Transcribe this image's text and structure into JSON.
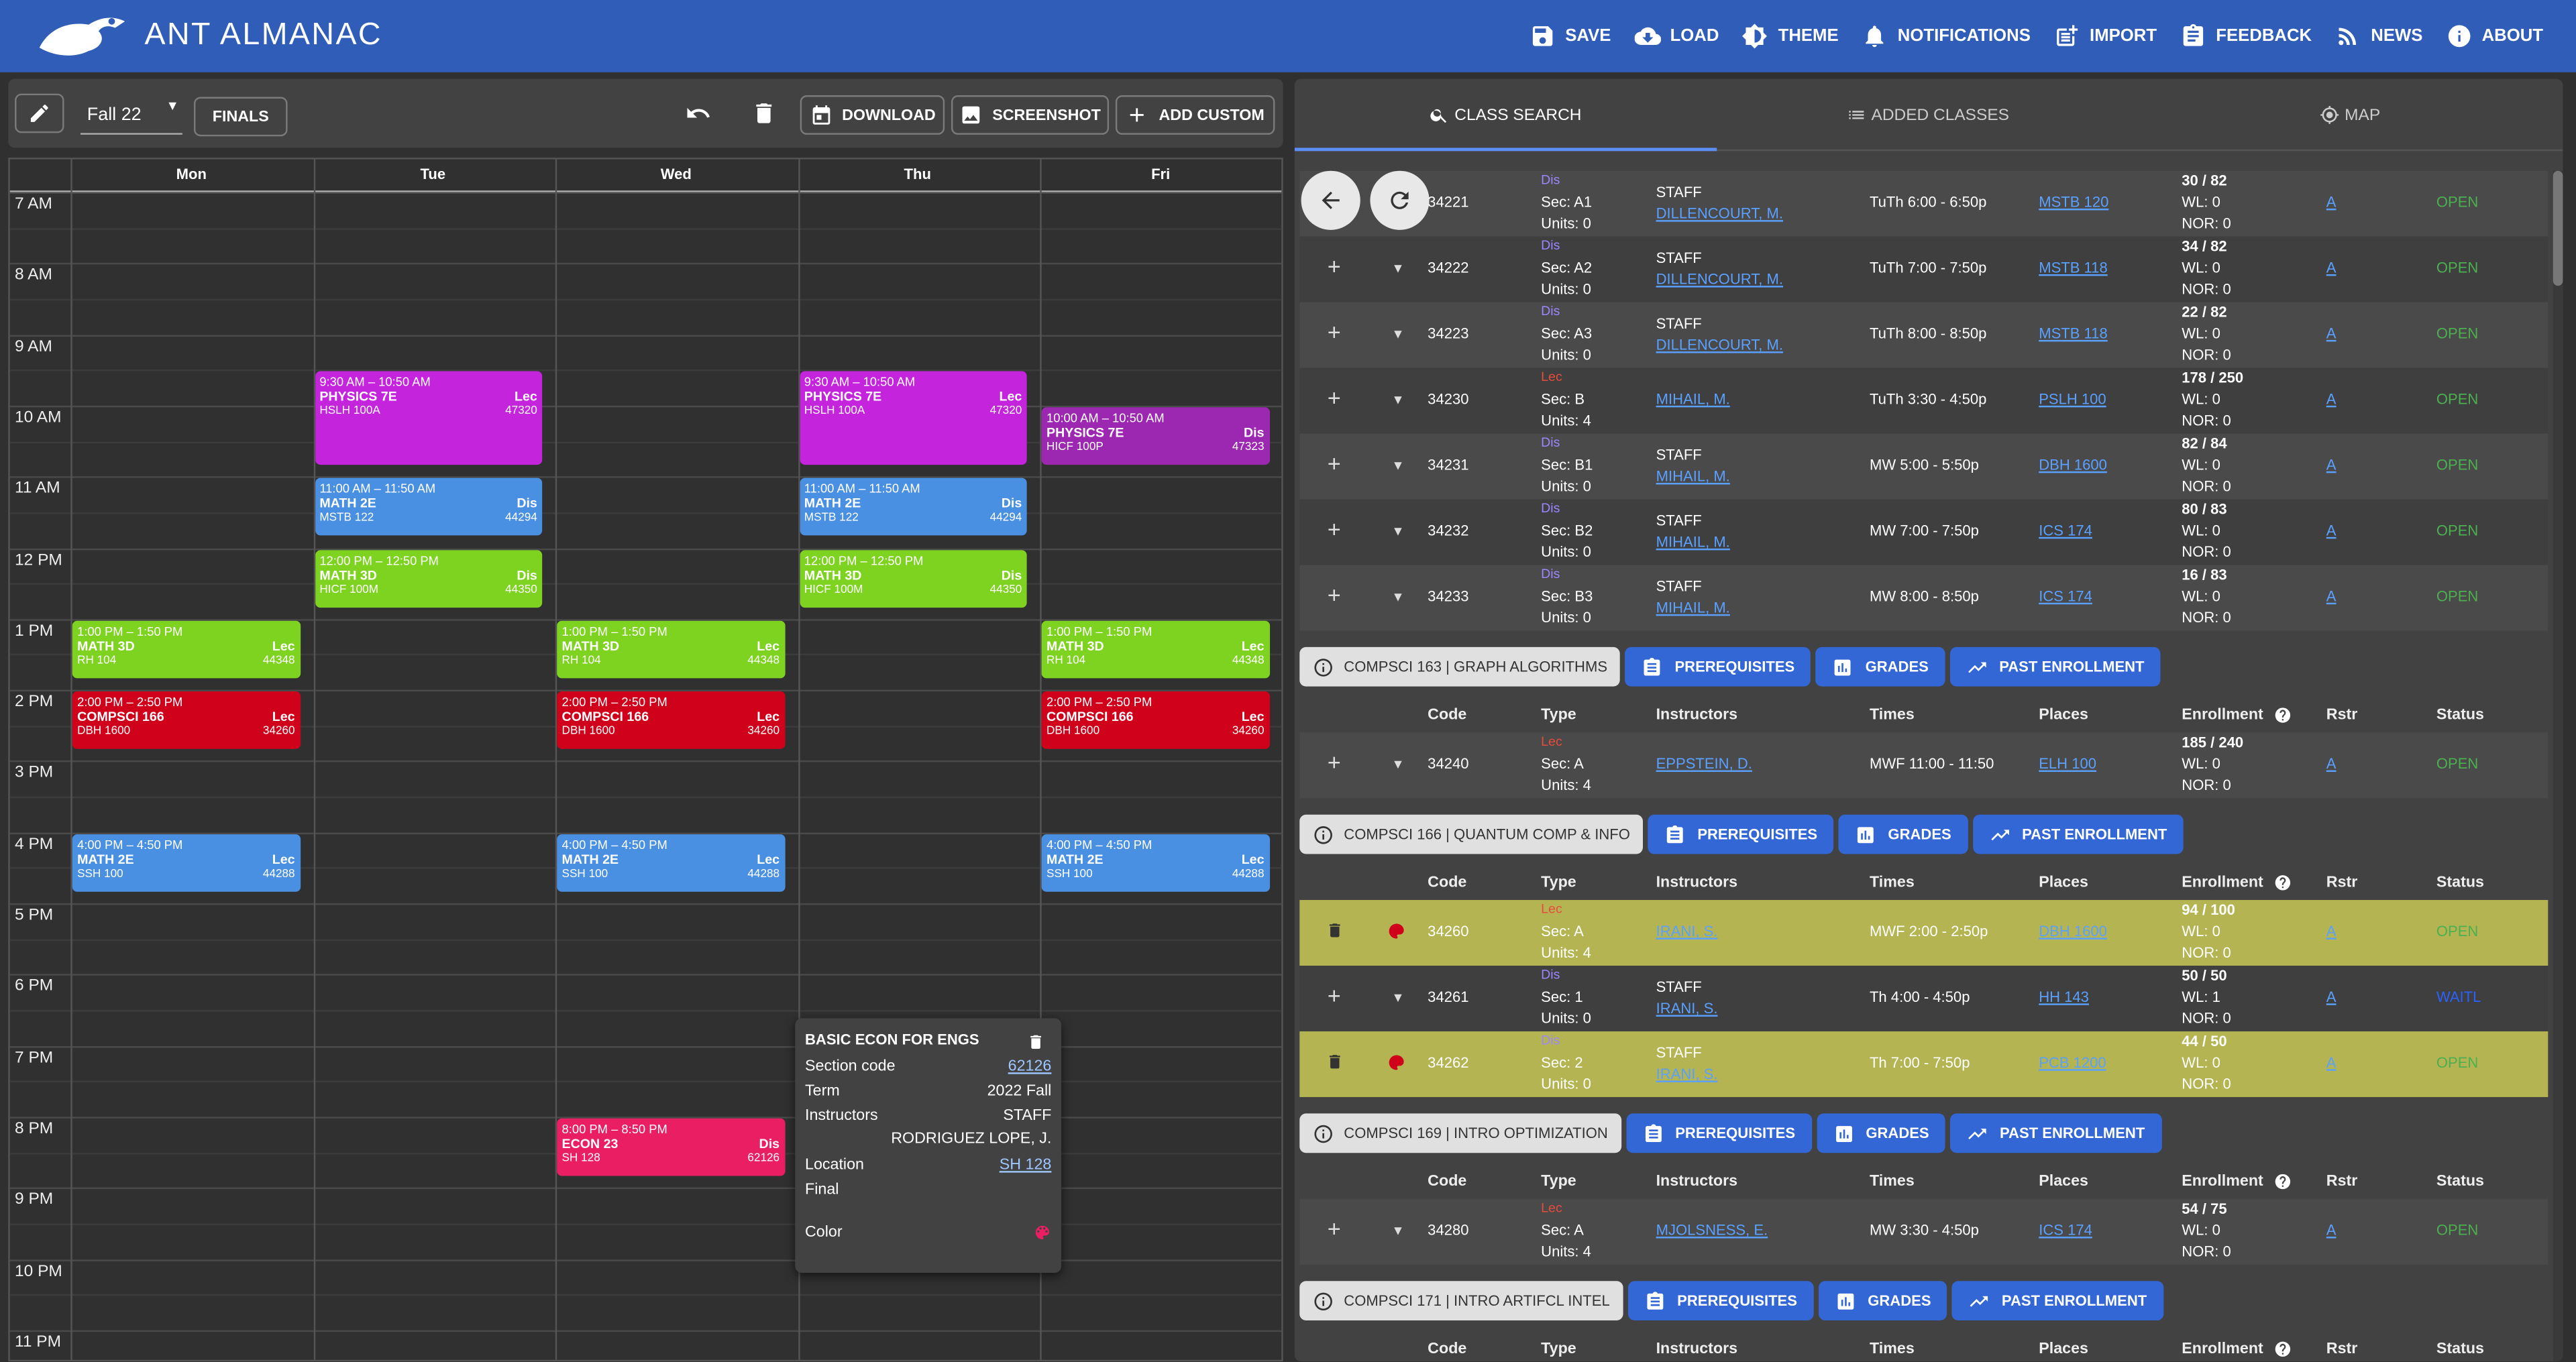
{
  "app": {
    "title": "ANT ALMANAC"
  },
  "nav": [
    {
      "label": "SAVE",
      "icon": "save-icon"
    },
    {
      "label": "LOAD",
      "icon": "cloud-download-icon"
    },
    {
      "label": "THEME",
      "icon": "brightness-icon"
    },
    {
      "label": "NOTIFICATIONS",
      "icon": "bell-icon"
    },
    {
      "label": "IMPORT",
      "icon": "post-add-icon"
    },
    {
      "label": "FEEDBACK",
      "icon": "assignment-icon"
    },
    {
      "label": "NEWS",
      "icon": "rss-icon"
    },
    {
      "label": "ABOUT",
      "icon": "info-icon"
    }
  ],
  "toolbar": {
    "term": "Fall 22",
    "finals": "FINALS",
    "download": "DOWNLOAD",
    "screenshot": "SCREENSHOT",
    "add_custom": "ADD CUSTOM"
  },
  "calendar": {
    "days": [
      "Mon",
      "Tue",
      "Wed",
      "Thu",
      "Fri"
    ],
    "hours": [
      "7 AM",
      "8 AM",
      "9 AM",
      "10 AM",
      "11 AM",
      "12 PM",
      "1 PM",
      "2 PM",
      "3 PM",
      "4 PM",
      "5 PM",
      "6 PM",
      "7 PM",
      "8 PM",
      "9 PM",
      "10 PM",
      "11 PM"
    ],
    "events": [
      {
        "day": 1,
        "start": 9.5,
        "end": 10.833,
        "time": "9:30 AM – 10:50 AM",
        "name": "PHYSICS 7E",
        "type": "Lec",
        "loc": "HSLH 100A",
        "code": "47320",
        "color": "#c424dc"
      },
      {
        "day": 3,
        "start": 9.5,
        "end": 10.833,
        "time": "9:30 AM – 10:50 AM",
        "name": "PHYSICS 7E",
        "type": "Lec",
        "loc": "HSLH 100A",
        "code": "47320",
        "color": "#c424dc"
      },
      {
        "day": 4,
        "start": 10,
        "end": 10.833,
        "time": "10:00 AM – 10:50 AM",
        "name": "PHYSICS 7E",
        "type": "Dis",
        "loc": "HICF 100P",
        "code": "47323",
        "color": "#9c27b0"
      },
      {
        "day": 1,
        "start": 11,
        "end": 11.833,
        "time": "11:00 AM – 11:50 AM",
        "name": "MATH 2E",
        "type": "Dis",
        "loc": "MSTB 122",
        "code": "44294",
        "color": "#4a90e2"
      },
      {
        "day": 3,
        "start": 11,
        "end": 11.833,
        "time": "11:00 AM – 11:50 AM",
        "name": "MATH 2E",
        "type": "Dis",
        "loc": "MSTB 122",
        "code": "44294",
        "color": "#4a90e2"
      },
      {
        "day": 1,
        "start": 12,
        "end": 12.833,
        "time": "12:00 PM – 12:50 PM",
        "name": "MATH 3D",
        "type": "Dis",
        "loc": "HICF 100M",
        "code": "44350",
        "color": "#7ed321"
      },
      {
        "day": 3,
        "start": 12,
        "end": 12.833,
        "time": "12:00 PM – 12:50 PM",
        "name": "MATH 3D",
        "type": "Dis",
        "loc": "HICF 100M",
        "code": "44350",
        "color": "#7ed321"
      },
      {
        "day": 0,
        "start": 13,
        "end": 13.833,
        "time": "1:00 PM – 1:50 PM",
        "name": "MATH 3D",
        "type": "Lec",
        "loc": "RH 104",
        "code": "44348",
        "color": "#7ed321"
      },
      {
        "day": 2,
        "start": 13,
        "end": 13.833,
        "time": "1:00 PM – 1:50 PM",
        "name": "MATH 3D",
        "type": "Lec",
        "loc": "RH 104",
        "code": "44348",
        "color": "#7ed321"
      },
      {
        "day": 4,
        "start": 13,
        "end": 13.833,
        "time": "1:00 PM – 1:50 PM",
        "name": "MATH 3D",
        "type": "Lec",
        "loc": "RH 104",
        "code": "44348",
        "color": "#7ed321"
      },
      {
        "day": 0,
        "start": 14,
        "end": 14.833,
        "time": "2:00 PM – 2:50 PM",
        "name": "COMPSCI 166",
        "type": "Lec",
        "loc": "DBH 1600",
        "code": "34260",
        "color": "#d0021b"
      },
      {
        "day": 2,
        "start": 14,
        "end": 14.833,
        "time": "2:00 PM – 2:50 PM",
        "name": "COMPSCI 166",
        "type": "Lec",
        "loc": "DBH 1600",
        "code": "34260",
        "color": "#d0021b"
      },
      {
        "day": 4,
        "start": 14,
        "end": 14.833,
        "time": "2:00 PM – 2:50 PM",
        "name": "COMPSCI 166",
        "type": "Lec",
        "loc": "DBH 1600",
        "code": "34260",
        "color": "#d0021b"
      },
      {
        "day": 0,
        "start": 16,
        "end": 16.833,
        "time": "4:00 PM – 4:50 PM",
        "name": "MATH 2E",
        "type": "Lec",
        "loc": "SSH 100",
        "code": "44288",
        "color": "#4a90e2"
      },
      {
        "day": 2,
        "start": 16,
        "end": 16.833,
        "time": "4:00 PM – 4:50 PM",
        "name": "MATH 2E",
        "type": "Lec",
        "loc": "SSH 100",
        "code": "44288",
        "color": "#4a90e2"
      },
      {
        "day": 4,
        "start": 16,
        "end": 16.833,
        "time": "4:00 PM – 4:50 PM",
        "name": "MATH 2E",
        "type": "Lec",
        "loc": "SSH 100",
        "code": "44288",
        "color": "#4a90e2"
      },
      {
        "day": 2,
        "start": 20,
        "end": 20.833,
        "time": "8:00 PM – 8:50 PM",
        "name": "ECON 23",
        "type": "Dis",
        "loc": "SH 128",
        "code": "62126",
        "color": "#e91e63"
      }
    ]
  },
  "popup": {
    "title": "BASIC ECON FOR ENGS",
    "section_label": "Section code",
    "section_value": "62126",
    "term_label": "Term",
    "term_value": "2022 Fall",
    "instr_label": "Instructors",
    "instr_value1": "STAFF",
    "instr_value2": "RODRIGUEZ LOPE, J.",
    "loc_label": "Location",
    "loc_value": "SH 128",
    "final_label": "Final",
    "color_label": "Color"
  },
  "tabs": [
    "CLASS SEARCH",
    "ADDED CLASSES",
    "MAP"
  ],
  "headers": {
    "code": "Code",
    "type": "Type",
    "instructors": "Instructors",
    "times": "Times",
    "places": "Places",
    "enrollment": "Enrollment",
    "rstr": "Rstr",
    "status": "Status"
  },
  "course_buttons": {
    "prereq": "PREREQUISITES",
    "grades": "GRADES",
    "past": "PAST ENROLLMENT"
  },
  "block1": [
    {
      "code": "34221",
      "type": "Dis",
      "sec": "Sec: A1",
      "units": "Units: 0",
      "instr1": "STAFF",
      "instr2": "DILLENCOURT, M.",
      "times": "TuTh 6:00 - 6:50p",
      "place": "MSTB 120",
      "enr": "30 / 82",
      "wl": "WL: 0",
      "nor": "NOR: 0",
      "rstr": "A",
      "status": "OPEN"
    },
    {
      "code": "34222",
      "type": "Dis",
      "sec": "Sec: A2",
      "units": "Units: 0",
      "instr1": "STAFF",
      "instr2": "DILLENCOURT, M.",
      "times": "TuTh 7:00 - 7:50p",
      "place": "MSTB 118",
      "enr": "34 / 82",
      "wl": "WL: 0",
      "nor": "NOR: 0",
      "rstr": "A",
      "status": "OPEN"
    },
    {
      "code": "34223",
      "type": "Dis",
      "sec": "Sec: A3",
      "units": "Units: 0",
      "instr1": "STAFF",
      "instr2": "DILLENCOURT, M.",
      "times": "TuTh 8:00 - 8:50p",
      "place": "MSTB 118",
      "enr": "22 / 82",
      "wl": "WL: 0",
      "nor": "NOR: 0",
      "rstr": "A",
      "status": "OPEN"
    },
    {
      "code": "34230",
      "type": "Lec",
      "sec": "Sec: B",
      "units": "Units: 4",
      "instr1": "MIHAIL, M.",
      "instr2": "",
      "times": "TuTh 3:30 - 4:50p",
      "place": "PSLH 100",
      "enr": "178 / 250",
      "wl": "WL: 0",
      "nor": "NOR: 0",
      "rstr": "A",
      "status": "OPEN"
    },
    {
      "code": "34231",
      "type": "Dis",
      "sec": "Sec: B1",
      "units": "Units: 0",
      "instr1": "STAFF",
      "instr2": "MIHAIL, M.",
      "times": "MW 5:00 - 5:50p",
      "place": "DBH 1600",
      "enr": "82 / 84",
      "wl": "WL: 0",
      "nor": "NOR: 0",
      "rstr": "A",
      "status": "OPEN"
    },
    {
      "code": "34232",
      "type": "Dis",
      "sec": "Sec: B2",
      "units": "Units: 0",
      "instr1": "STAFF",
      "instr2": "MIHAIL, M.",
      "times": "MW 7:00 - 7:50p",
      "place": "ICS 174",
      "enr": "80 / 83",
      "wl": "WL: 0",
      "nor": "NOR: 0",
      "rstr": "A",
      "status": "OPEN"
    },
    {
      "code": "34233",
      "type": "Dis",
      "sec": "Sec: B3",
      "units": "Units: 0",
      "instr1": "STAFF",
      "instr2": "MIHAIL, M.",
      "times": "MW 8:00 - 8:50p",
      "place": "ICS 174",
      "enr": "16 / 83",
      "wl": "WL: 0",
      "nor": "NOR: 0",
      "rstr": "A",
      "status": "OPEN"
    }
  ],
  "course163": {
    "name": "COMPSCI 163 | GRAPH ALGORITHMS",
    "rows": [
      {
        "code": "34240",
        "type": "Lec",
        "sec": "Sec: A",
        "units": "Units: 4",
        "instr1": "EPPSTEIN, D.",
        "instr2": "",
        "times": "MWF 11:00 - 11:50",
        "place": "ELH 100",
        "enr": "185 / 240",
        "wl": "WL: 0",
        "nor": "NOR: 0",
        "rstr": "A",
        "status": "OPEN"
      }
    ]
  },
  "course166": {
    "name": "COMPSCI 166 | QUANTUM COMP & INFO",
    "rows": [
      {
        "code": "34260",
        "type": "Lec",
        "sec": "Sec: A",
        "units": "Units: 4",
        "instr1": "IRANI, S.",
        "instr2": "",
        "times": "MWF 2:00 - 2:50p",
        "place": "DBH 1600",
        "enr": "94 / 100",
        "wl": "WL: 0",
        "nor": "NOR: 0",
        "rstr": "A",
        "status": "OPEN",
        "added": true
      },
      {
        "code": "34261",
        "type": "Dis",
        "sec": "Sec: 1",
        "units": "Units: 0",
        "instr1": "STAFF",
        "instr2": "IRANI, S.",
        "times": "Th 4:00 - 4:50p",
        "place": "HH 143",
        "enr": "50 / 50",
        "wl": "WL: 1",
        "nor": "NOR: 0",
        "rstr": "A",
        "status": "WAITL"
      },
      {
        "code": "34262",
        "type": "Dis",
        "sec": "Sec: 2",
        "units": "Units: 0",
        "instr1": "STAFF",
        "instr2": "IRANI, S.",
        "times": "Th 7:00 - 7:50p",
        "place": "PCB 1200",
        "enr": "44 / 50",
        "wl": "WL: 0",
        "nor": "NOR: 0",
        "rstr": "A",
        "status": "OPEN",
        "added": true
      }
    ]
  },
  "course169": {
    "name": "COMPSCI 169 | INTRO OPTIMIZATION",
    "rows": [
      {
        "code": "34280",
        "type": "Lec",
        "sec": "Sec: A",
        "units": "Units: 4",
        "instr1": "MJOLSNESS, E.",
        "instr2": "",
        "times": "MW 3:30 - 4:50p",
        "place": "ICS 174",
        "enr": "54 / 75",
        "wl": "WL: 0",
        "nor": "NOR: 0",
        "rstr": "A",
        "status": "OPEN"
      }
    ]
  },
  "course171": {
    "name": "COMPSCI 171 | INTRO ARTIFCL INTEL"
  },
  "colors": {
    "appbar": "#305db7",
    "button": "#3367d6",
    "added_row": "#b4b452",
    "open": "#4caf50"
  }
}
